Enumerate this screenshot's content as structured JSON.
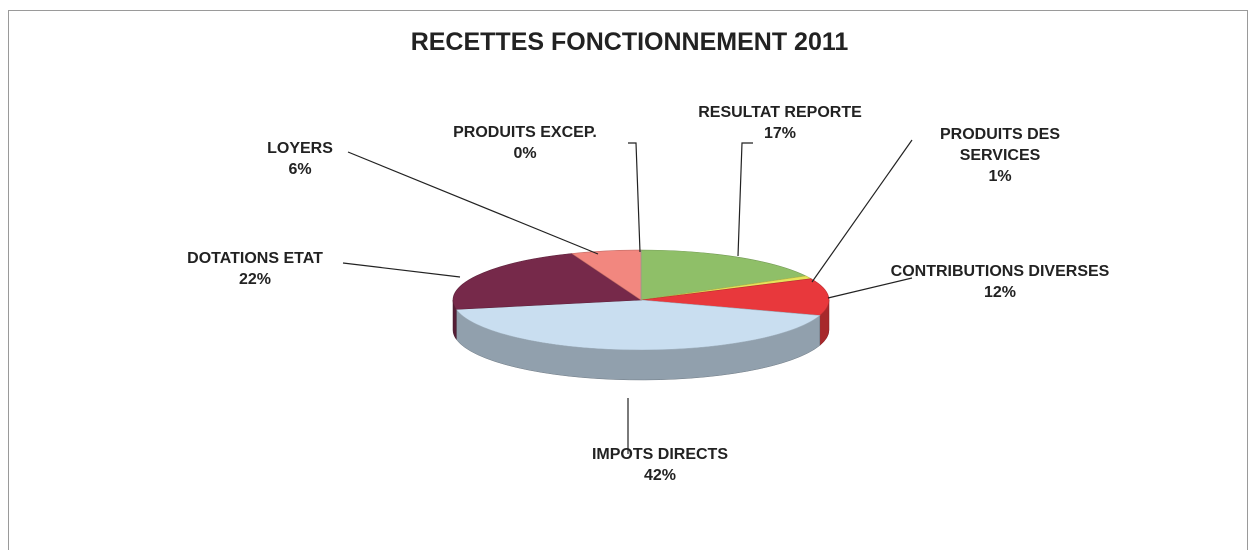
{
  "chart_data": {
    "type": "pie",
    "title": "RECETTES FONCTIONNEMENT 2011",
    "categories": [
      "RESULTAT REPORTE",
      "PRODUITS DES SERVICES",
      "CONTRIBUTIONS DIVERSES",
      "IMPOTS DIRECTS",
      "DOTATIONS ETAT",
      "LOYERS",
      "PRODUITS EXCEP."
    ],
    "values": [
      17,
      1,
      12,
      42,
      22,
      6,
      0
    ],
    "value_labels": [
      "17%",
      "1%",
      "12%",
      "42%",
      "22%",
      "6%",
      "0%"
    ],
    "colors": [
      "#8fbf68",
      "#e6e35a",
      "#e8383c",
      "#c9def0",
      "#76294a",
      "#f2877f",
      "#c8c8c8"
    ]
  }
}
